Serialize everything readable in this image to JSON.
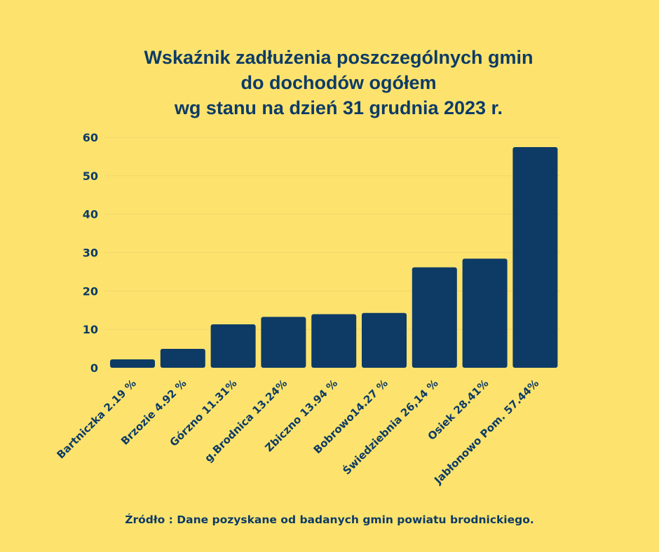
{
  "title_lines": [
    "Wskaźnik zadłużenia poszczególnych gmin",
    "do dochodów ogółem",
    "wg stanu na dzień 31 grudnia 2023 r."
  ],
  "source": "Źródło : Dane pozyskane od badanych gmin powiatu brodnickiego.",
  "colors": {
    "background": "#fde36e",
    "bar": "#0d3b66",
    "text": "#0d3b66",
    "grid": "#f1d36a"
  },
  "chart_data": {
    "type": "bar",
    "title": "Wskaźnik zadłużenia poszczególnych gmin do dochodów ogółem wg stanu na dzień 31 grudnia 2023 r.",
    "categories": [
      "Bartniczka 2.19 %",
      "Brzozie 4.92 %",
      "Górzno 11.31%",
      "g.Brodnica 13.24%",
      "Zbiczno 13.94 %",
      "Bobrowo14.27 %",
      "Świedziebnia 26,14 %",
      "Osiek 28.41%",
      "Jabłonowo Pom. 57.44%"
    ],
    "values": [
      2.19,
      4.92,
      11.31,
      13.24,
      13.94,
      14.27,
      26.14,
      28.41,
      57.44
    ],
    "yticks": [
      0,
      10,
      20,
      30,
      40,
      50,
      60
    ],
    "ylim": [
      0,
      60
    ],
    "grid": true,
    "legend": "none",
    "xlabel": "",
    "ylabel": ""
  }
}
